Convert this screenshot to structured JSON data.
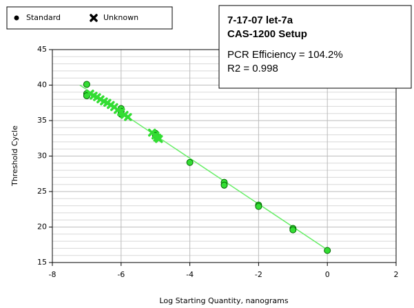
{
  "chart_data": {
    "type": "scatter",
    "x_label": "Log Starting Quantity, nanograms",
    "y_label": "Threshold Cycle",
    "box": {
      "title": "7-17-07 let-7a",
      "subtitle": "CAS-1200 Setup",
      "efficiency": "PCR Efficiency = 104.2%",
      "r2": "R2 = 0.998"
    },
    "xlim": [
      -8,
      2
    ],
    "xticks": [
      -8,
      -6,
      -4,
      -2,
      0,
      2
    ],
    "ylim": [
      15,
      45
    ],
    "yticks": [
      15,
      20,
      25,
      30,
      35,
      40,
      45
    ],
    "y_minor_ticks": [
      16,
      17,
      18,
      19,
      21,
      22,
      23,
      24,
      26,
      27,
      28,
      29,
      31,
      32,
      33,
      34,
      36,
      37,
      38,
      39,
      41,
      42,
      43,
      44
    ],
    "grid": true,
    "legend_color": "#000000",
    "series": [
      {
        "name": "Standard",
        "marker": "circle",
        "color": "#33dd33",
        "x": [
          -7,
          -7,
          -7,
          -6,
          -6,
          -6,
          -5,
          -5,
          -4,
          -3,
          -3,
          -2,
          -2,
          -1,
          -1,
          0
        ],
        "values": [
          40.1,
          38.8,
          38.5,
          36.7,
          36.3,
          35.9,
          33.2,
          32.9,
          29.1,
          26.3,
          25.9,
          23.1,
          22.9,
          19.8,
          19.6,
          16.7
        ]
      },
      {
        "name": "Unknown",
        "marker": "x",
        "color": "#33dd33",
        "x": [
          -6.9,
          -6.8,
          -6.7,
          -6.6,
          -6.5,
          -6.4,
          -6.3,
          -6.2,
          -6.1,
          -6.0,
          -5.9,
          -5.8,
          -5.1,
          -5.0,
          -4.95,
          -4.9
        ],
        "values": [
          38.8,
          38.5,
          38.3,
          38.0,
          37.7,
          37.5,
          37.2,
          36.9,
          36.5,
          36.2,
          35.8,
          35.5,
          33.3,
          32.9,
          32.6,
          32.4
        ]
      }
    ],
    "fit": {
      "color": "#66ee66",
      "x": [
        -7.2,
        0
      ],
      "values": [
        40.0,
        16.8
      ]
    }
  }
}
